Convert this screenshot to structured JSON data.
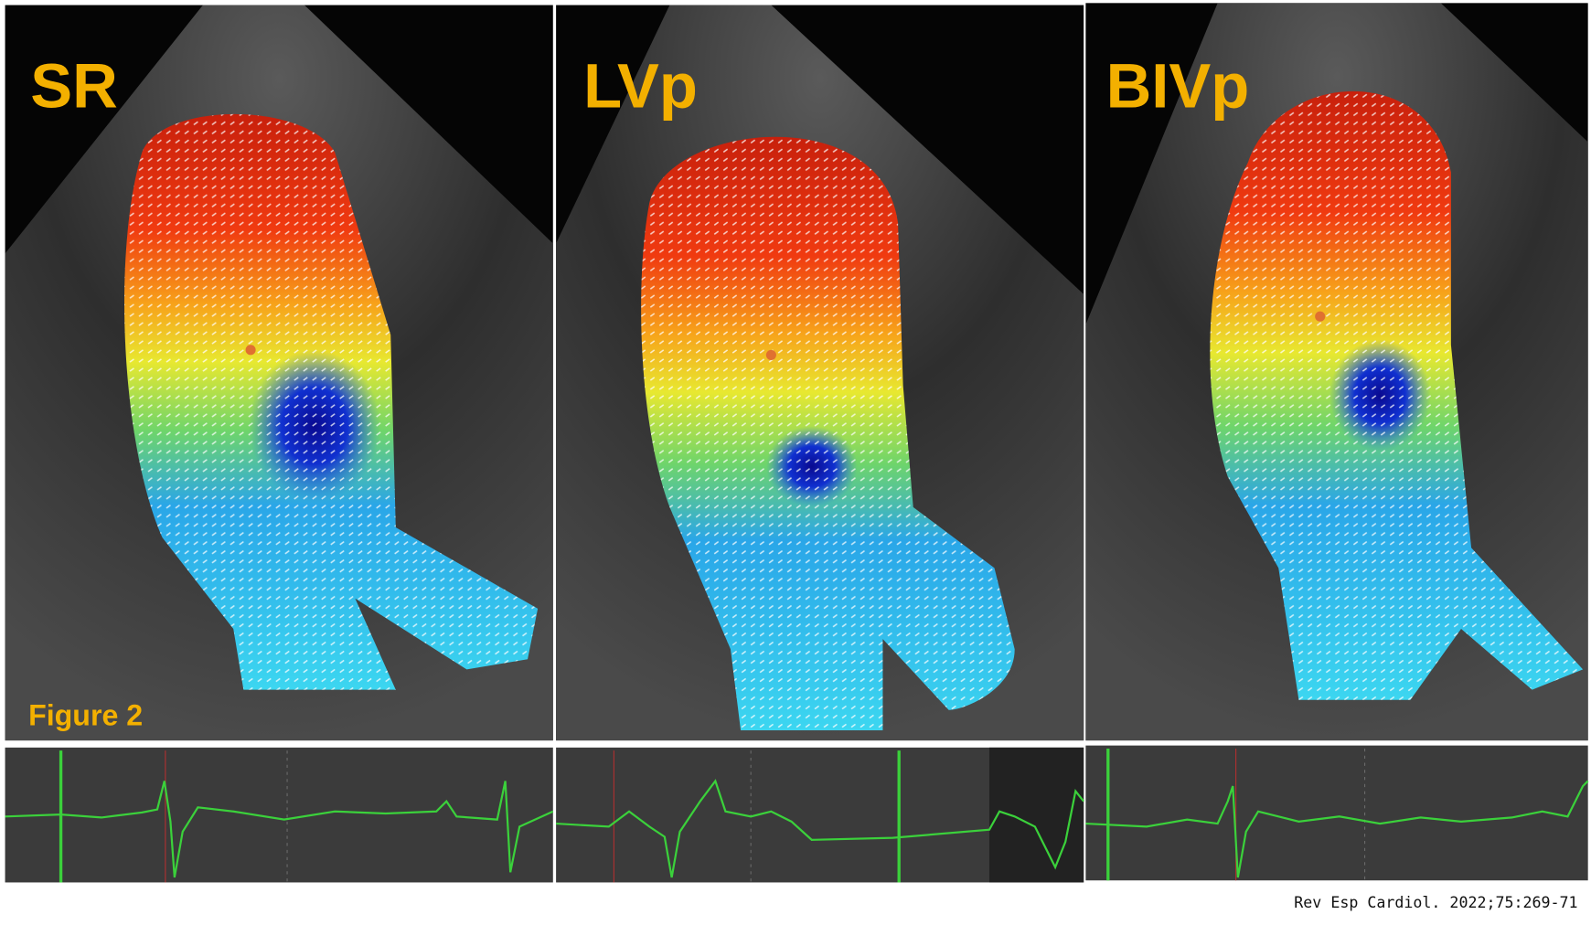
{
  "panels": [
    {
      "label": "SR"
    },
    {
      "label": "LVp"
    },
    {
      "label": "BIVp"
    }
  ],
  "figure_label": "Figure 2",
  "citation": "Rev Esp Cardiol. 2022;75:269-71"
}
